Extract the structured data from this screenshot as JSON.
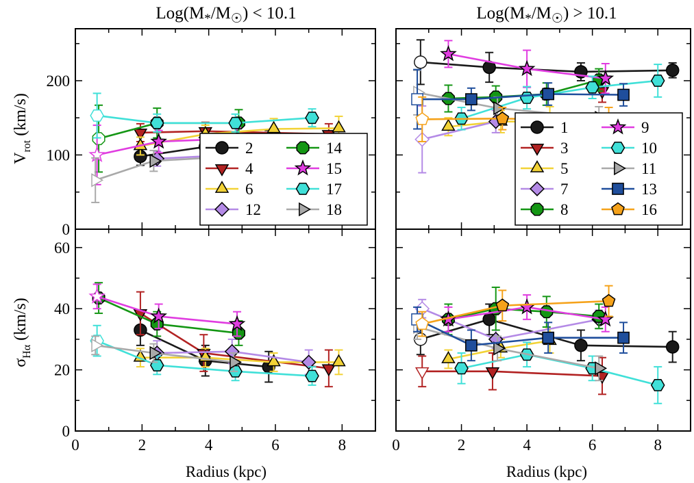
{
  "figure": {
    "left_title": "Log(M",
    "left_title_tail": "/M",
    "left_title_end": ") < 10.1",
    "right_title": "Log(M",
    "right_title_tail": "/M",
    "right_title_end": ") > 10.1",
    "star_sub": "*",
    "sun_sub": "☉",
    "xlabel": "Radius (kpc)",
    "ylabel_top_main": "V",
    "ylabel_top_sub": "rot",
    "ylabel_top_unit": "(km/s)",
    "ylabel_bottom_main": "σ",
    "ylabel_bottom_sub": "Hα",
    "ylabel_bottom_unit": "(km/s)"
  },
  "chart_data": [
    {
      "type": "line",
      "panel": "top-left",
      "ylabel": "Vrot (km/s)",
      "xlim": [
        0,
        9
      ],
      "ylim": [
        0,
        270
      ],
      "xticks": [],
      "yticks": [
        0,
        100,
        200
      ],
      "legend": {
        "placement": "lower-right",
        "columns": 2,
        "entries": [
          "2",
          "4",
          "6",
          "12",
          "14",
          "15",
          "17",
          "18"
        ]
      },
      "series": [
        {
          "name": "2",
          "color": "#1a1a1a",
          "marker": "circle",
          "x": [
            1.95,
            3.9,
            5.8
          ],
          "y": [
            98,
            111,
            118
          ],
          "err": [
            12,
            12,
            15
          ]
        },
        {
          "name": "4",
          "color": "#b22222",
          "marker": "tri-down",
          "x": [
            1.95,
            3.9,
            7.6
          ],
          "y": [
            130,
            132,
            128
          ],
          "err": [
            12,
            12,
            14
          ]
        },
        {
          "name": "6",
          "color": "#f2d236",
          "marker": "tri-up",
          "x": [
            1.95,
            3.9,
            5.95,
            7.9
          ],
          "y": [
            112,
            128,
            135,
            136
          ],
          "err": [
            12,
            12,
            14,
            16
          ]
        },
        {
          "name": "12",
          "color": "#b48ae6",
          "marker": "diamond",
          "x": [
            2.45,
            4.7,
            7.0
          ],
          "y": [
            95,
            100,
            111
          ],
          "err": [
            10,
            10,
            12
          ]
        },
        {
          "name": "14",
          "color": "#149614",
          "marker": "octagon",
          "x": [
            0.7,
            2.45,
            4.9
          ],
          "y": [
            122,
            143,
            143
          ],
          "err": [
            45,
            20,
            18
          ],
          "open_first": true
        },
        {
          "name": "15",
          "color": "#e03ce0",
          "marker": "star",
          "x": [
            0.65,
            2.5,
            4.85
          ],
          "y": [
            100,
            118,
            122
          ],
          "err": [
            40,
            15,
            15
          ],
          "open_first": true
        },
        {
          "name": "17",
          "color": "#40e0d8",
          "marker": "hexagon",
          "x": [
            0.65,
            2.45,
            4.8,
            7.1
          ],
          "y": [
            153,
            143,
            143,
            150
          ],
          "err": [
            30,
            12,
            12,
            12
          ],
          "open_first": true
        },
        {
          "name": "18",
          "color": "#a9a9a9",
          "marker": "tri-right",
          "x": [
            0.6,
            2.35,
            4.75
          ],
          "y": [
            66,
            92,
            98
          ],
          "err": [
            30,
            14,
            12
          ],
          "open_first": true
        }
      ]
    },
    {
      "type": "line",
      "panel": "top-right",
      "xlim": [
        0,
        9
      ],
      "ylim": [
        0,
        270
      ],
      "xticks": [],
      "yticks": [],
      "legend": {
        "placement": "lower-right",
        "columns": 2,
        "entries": [
          "1",
          "3",
          "5",
          "7",
          "8",
          "9",
          "10",
          "11",
          "13",
          "16"
        ]
      },
      "series": [
        {
          "name": "1",
          "color": "#1a1a1a",
          "marker": "circle",
          "x": [
            0.75,
            2.85,
            5.65,
            8.45
          ],
          "y": [
            225,
            218,
            212,
            214
          ],
          "err": [
            30,
            20,
            12,
            10
          ],
          "open_first": true
        },
        {
          "name": "3",
          "color": "#b22222",
          "marker": "tri-down",
          "x": [
            6.3
          ],
          "y": [
            186
          ],
          "err": [
            15
          ]
        },
        {
          "name": "5",
          "color": "#f2d236",
          "marker": "tri-up",
          "x": [
            1.6,
            3.2,
            4.7
          ],
          "y": [
            138,
            145,
            145
          ],
          "err": [
            12,
            15,
            20
          ]
        },
        {
          "name": "7",
          "color": "#b48ae6",
          "marker": "diamond",
          "x": [
            0.8,
            3.05
          ],
          "y": [
            121,
            145
          ],
          "err": [
            45,
            15
          ],
          "open_first": true
        },
        {
          "name": "8",
          "color": "#149614",
          "marker": "octagon",
          "x": [
            1.6,
            3.05,
            4.6,
            6.2
          ],
          "y": [
            176,
            178,
            182,
            201
          ],
          "err": [
            18,
            15,
            15,
            15
          ]
        },
        {
          "name": "9",
          "color": "#e03ce0",
          "marker": "star",
          "x": [
            1.6,
            4.0,
            6.4
          ],
          "y": [
            236,
            216,
            203
          ],
          "err": [
            18,
            25,
            20
          ]
        },
        {
          "name": "10",
          "color": "#40e0d8",
          "marker": "hexagon",
          "x": [
            2.0,
            4.0,
            6.0,
            8.0
          ],
          "y": [
            149,
            177,
            191,
            200
          ],
          "err": [
            15,
            15,
            15,
            22
          ]
        },
        {
          "name": "11",
          "color": "#a9a9a9",
          "marker": "tri-right",
          "x": [
            0.65,
            3.1,
            6.2
          ],
          "y": [
            184,
            163,
            150
          ],
          "err": [
            30,
            15,
            15
          ],
          "open_first": true
        },
        {
          "name": "13",
          "color": "#1f4e9c",
          "marker": "square",
          "x": [
            0.65,
            2.3,
            4.65,
            6.95
          ],
          "y": [
            175,
            175,
            182,
            181
          ],
          "err": [
            40,
            15,
            15,
            15
          ],
          "open_first": true
        },
        {
          "name": "16",
          "color": "#f5a21a",
          "marker": "pentagon",
          "x": [
            0.8,
            3.25,
            6.5
          ],
          "y": [
            148,
            149,
            146
          ],
          "err": [
            30,
            15,
            18
          ],
          "open_first": true
        }
      ]
    },
    {
      "type": "line",
      "panel": "bottom-left",
      "xlabel": "Radius (kpc)",
      "ylabel": "σHα (km/s)",
      "xlim": [
        0,
        9
      ],
      "ylim": [
        0,
        66
      ],
      "xticks": [
        0,
        2,
        4,
        6,
        8
      ],
      "yticks": [
        0,
        20,
        40,
        60
      ],
      "series": [
        {
          "name": "2",
          "color": "#1a1a1a",
          "marker": "circle",
          "x": [
            1.95,
            3.9,
            5.8
          ],
          "y": [
            33,
            23,
            21
          ],
          "err": [
            5,
            5,
            5
          ]
        },
        {
          "name": "4",
          "color": "#b22222",
          "marker": "tri-down",
          "x": [
            1.95,
            3.85,
            7.6
          ],
          "y": [
            38.5,
            25.5,
            20.5
          ],
          "err": [
            7,
            6,
            6
          ]
        },
        {
          "name": "6",
          "color": "#f2d236",
          "marker": "tri-up",
          "x": [
            1.95,
            3.9,
            5.95,
            7.9
          ],
          "y": [
            24,
            24,
            22.5,
            22.5
          ],
          "err": [
            3,
            3,
            3,
            4
          ]
        },
        {
          "name": "12",
          "color": "#b48ae6",
          "marker": "diamond",
          "x": [
            2.45,
            4.7,
            7.0
          ],
          "y": [
            25.5,
            26,
            22.5
          ],
          "err": [
            4,
            4,
            4
          ]
        },
        {
          "name": "14",
          "color": "#149614",
          "marker": "octagon",
          "x": [
            0.7,
            2.45,
            4.9
          ],
          "y": [
            43.5,
            35,
            32
          ],
          "err": [
            5,
            4,
            4
          ]
        },
        {
          "name": "15",
          "color": "#e03ce0",
          "marker": "star",
          "x": [
            0.65,
            2.5,
            4.85
          ],
          "y": [
            44,
            37.5,
            35
          ],
          "err": [
            4,
            4,
            4
          ],
          "open_first": true
        },
        {
          "name": "17",
          "color": "#40e0d8",
          "marker": "hexagon",
          "x": [
            0.65,
            2.45,
            4.8,
            7.1
          ],
          "y": [
            29.5,
            21.5,
            19.5,
            18
          ],
          "err": [
            5,
            3,
            3,
            3
          ],
          "open_first": true
        },
        {
          "name": "18",
          "color": "#a9a9a9",
          "marker": "tri-right",
          "x": [
            0.6,
            2.35,
            4.75
          ],
          "y": [
            28,
            25.5,
            22.5
          ],
          "err": [
            3,
            3,
            3
          ],
          "open_first": true
        }
      ]
    },
    {
      "type": "line",
      "panel": "bottom-right",
      "xlabel": "Radius (kpc)",
      "xlim": [
        0,
        9
      ],
      "ylim": [
        0,
        66
      ],
      "xticks": [
        0,
        2,
        4,
        6,
        8
      ],
      "yticks": [],
      "series": [
        {
          "name": "1",
          "color": "#1a1a1a",
          "marker": "circle",
          "x": [
            0.75,
            2.85,
            5.65,
            8.45
          ],
          "y": [
            30,
            36.5,
            28,
            27.5
          ],
          "err": [
            5,
            5,
            5,
            5
          ],
          "open_first": true
        },
        {
          "name": "3",
          "color": "#b22222",
          "marker": "tri-down",
          "x": [
            0.8,
            2.95,
            6.3
          ],
          "y": [
            19.5,
            19.5,
            18
          ],
          "err": [
            5,
            6,
            6
          ],
          "open_first": true
        },
        {
          "name": "5",
          "color": "#f2d236",
          "marker": "tri-up",
          "x": [
            1.6,
            3.2,
            4.7
          ],
          "y": [
            23.5,
            27,
            29.5
          ],
          "err": [
            3,
            3,
            4
          ]
        },
        {
          "name": "7",
          "color": "#b48ae6",
          "marker": "diamond",
          "x": [
            0.8,
            3.05,
            6.2
          ],
          "y": [
            40,
            30,
            36.5
          ],
          "err": [
            3,
            3,
            3
          ],
          "open_first": true
        },
        {
          "name": "8",
          "color": "#149614",
          "marker": "octagon",
          "x": [
            1.6,
            3.05,
            4.6,
            6.2
          ],
          "y": [
            36.5,
            40,
            39,
            37.5
          ],
          "err": [
            5,
            7,
            5,
            4
          ]
        },
        {
          "name": "9",
          "color": "#e03ce0",
          "marker": "star",
          "x": [
            1.6,
            4.0,
            6.4
          ],
          "y": [
            36.5,
            40.5,
            36.5
          ],
          "err": [
            4,
            4,
            4
          ]
        },
        {
          "name": "10",
          "color": "#40e0d8",
          "marker": "hexagon",
          "x": [
            2.0,
            4.0,
            6.0,
            8.0
          ],
          "y": [
            20.5,
            25,
            20.5,
            15
          ],
          "err": [
            5,
            4,
            4,
            6
          ]
        },
        {
          "name": "11",
          "color": "#a9a9a9",
          "marker": "tri-right",
          "x": [
            0.65,
            3.1,
            6.2
          ],
          "y": [
            34,
            27,
            20.5
          ],
          "err": [
            4,
            4,
            4
          ],
          "open_first": true
        },
        {
          "name": "13",
          "color": "#1f4e9c",
          "marker": "square",
          "x": [
            0.65,
            2.3,
            4.65,
            6.95
          ],
          "y": [
            36.5,
            28,
            30.5,
            30.5
          ],
          "err": [
            4,
            5,
            5,
            5
          ],
          "open_first": true
        },
        {
          "name": "16",
          "color": "#f5a21a",
          "marker": "pentagon",
          "x": [
            0.8,
            3.25,
            6.5
          ],
          "y": [
            35,
            41,
            42.5
          ],
          "err": [
            4,
            5,
            5
          ],
          "open_first": true
        }
      ]
    }
  ]
}
